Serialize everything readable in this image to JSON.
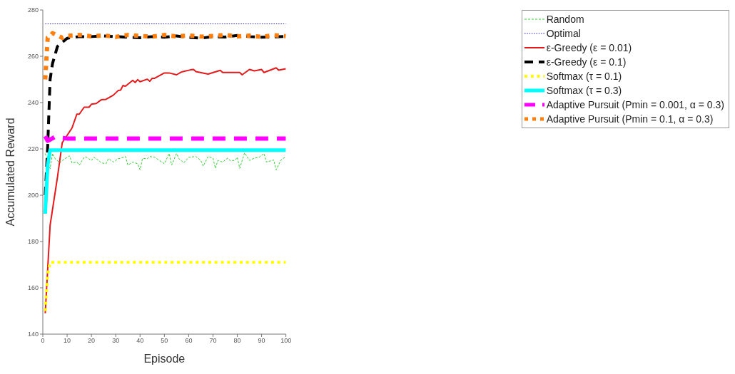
{
  "chart_data": {
    "type": "line",
    "xlabel": "Episode",
    "ylabel": "Accumulated Reward",
    "xlim": [
      0,
      100
    ],
    "xticks": [
      0,
      10,
      20,
      30,
      40,
      50,
      60,
      70,
      80,
      90,
      100
    ],
    "ylim": [
      140,
      280
    ],
    "yticks": [
      140,
      160,
      180,
      200,
      220,
      240,
      260,
      280
    ],
    "grid": false,
    "legend": "top right",
    "marker": "none",
    "series": [
      {
        "name": "Random",
        "color": "#33cc33",
        "line_style": "dashed",
        "x": [
          1,
          3,
          4,
          5,
          7,
          8,
          11,
          12,
          14,
          15,
          17,
          18,
          20,
          21,
          23,
          24,
          26,
          27,
          29,
          31,
          32,
          34,
          35,
          37,
          39,
          40,
          41,
          43,
          44,
          46,
          48,
          50,
          52,
          53,
          55,
          56,
          58,
          60,
          63,
          65,
          66,
          68,
          70,
          71,
          72,
          74,
          76,
          77,
          79,
          80,
          81,
          83,
          85,
          87,
          89,
          91,
          92,
          95,
          96,
          98,
          100
        ],
        "values": [
          218,
          211.5,
          218,
          215.8,
          214,
          215,
          217,
          213.9,
          214.3,
          213,
          216.4,
          216.4,
          215,
          216.4,
          215,
          214,
          213.6,
          215.8,
          214.3,
          215.8,
          216,
          216.7,
          213,
          214.3,
          213.6,
          211,
          215.8,
          215.8,
          216.7,
          216.4,
          215,
          213.6,
          218,
          213,
          218,
          215.8,
          214,
          216.4,
          216.7,
          215,
          212.6,
          216.7,
          216,
          211.6,
          215,
          214.3,
          216,
          215,
          215,
          216.4,
          211.6,
          218.3,
          215,
          216,
          216.4,
          218,
          214.3,
          215.2,
          211,
          215.2,
          216.7
        ]
      },
      {
        "name": "Optimal",
        "color": "#1f1fb4",
        "line_style": "dotted",
        "x": [
          1,
          100
        ],
        "values": [
          274,
          274
        ]
      },
      {
        "name": "ε-Greedy (ε = 0.01)",
        "color": "#e31a1c",
        "line_style": "solid",
        "x": [
          1,
          3,
          6,
          8,
          12,
          14,
          15,
          17,
          19,
          20,
          22,
          24,
          26,
          29,
          31,
          32,
          33,
          34,
          37,
          38,
          39,
          40,
          43,
          44,
          45,
          46,
          50,
          52,
          55,
          57,
          61,
          62,
          63,
          68,
          73,
          74,
          81,
          82,
          85,
          87,
          90,
          91,
          96,
          97,
          100
        ],
        "values": [
          149,
          187,
          207.6,
          222.7,
          229,
          235,
          235,
          238,
          238,
          239.3,
          239.6,
          241.2,
          241.4,
          243.2,
          245.2,
          245.4,
          247.4,
          247.1,
          249.6,
          248.7,
          249.9,
          249,
          250.1,
          249.2,
          250.5,
          250.5,
          252.8,
          252.8,
          252,
          253.2,
          254.2,
          254.3,
          253.4,
          252.3,
          253.9,
          253,
          253,
          252,
          254.3,
          253.7,
          254.3,
          253,
          255,
          254,
          254.6
        ]
      },
      {
        "name": "ε-Greedy (ε = 0.1)",
        "color": "#000000",
        "line_style": "dashed",
        "x": [
          1,
          2,
          3,
          4,
          5,
          6,
          8,
          10,
          15,
          20,
          25,
          30,
          35,
          40,
          45,
          50,
          55,
          60,
          65,
          70,
          75,
          80,
          85,
          90,
          95,
          100
        ],
        "values": [
          200,
          221,
          250,
          256.9,
          260.5,
          264.2,
          266,
          267.8,
          268.5,
          268.5,
          268.8,
          268.5,
          268.2,
          268,
          268.5,
          268.2,
          268.8,
          268.2,
          267.8,
          268.5,
          268.3,
          269,
          268.5,
          268.2,
          268.4,
          268.6
        ]
      },
      {
        "name": "Softmax (τ = 0.1)",
        "color": "#ffff00",
        "line_style": "dotted",
        "x": [
          1,
          2,
          3,
          100
        ],
        "values": [
          150,
          166,
          171,
          171
        ]
      },
      {
        "name": "Softmax (τ = 0.3)",
        "color": "#00ffff",
        "line_style": "solid",
        "x": [
          1,
          2,
          3,
          100
        ],
        "values": [
          192,
          213,
          219.5,
          219.5
        ]
      },
      {
        "name": "Adaptive Pursuit (Pmin = 0.001, α = 0.3)",
        "color": "#ff00ff",
        "line_style": "dashed",
        "x": [
          1,
          2,
          3,
          5,
          7,
          10,
          100
        ],
        "values": [
          225.5,
          223.5,
          224,
          225.2,
          224.8,
          224.5,
          224.5
        ]
      },
      {
        "name": "Adaptive Pursuit (Pmin = 0.1, α = 0.3)",
        "color": "#ff7f0e",
        "line_style": "dotted",
        "x": [
          1,
          2,
          3,
          4,
          6,
          8,
          10,
          15,
          20,
          25,
          30,
          35,
          40,
          45,
          50,
          55,
          60,
          65,
          70,
          75,
          80,
          85,
          90,
          95,
          100
        ],
        "values": [
          250,
          268,
          268.5,
          270,
          269,
          268,
          268.8,
          269.2,
          268.6,
          269,
          268.4,
          269.2,
          268.8,
          268.5,
          269.2,
          268.6,
          269,
          268.5,
          268.8,
          269.2,
          268.6,
          268.9,
          268.4,
          269.1,
          268.7
        ]
      }
    ]
  }
}
